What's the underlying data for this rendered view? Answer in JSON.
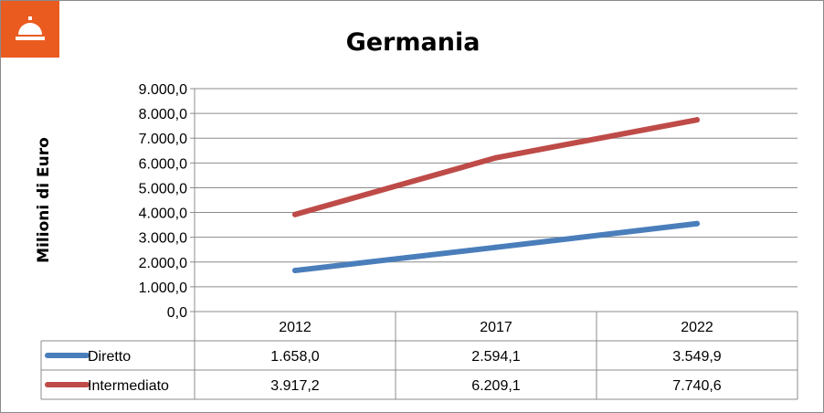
{
  "title": "Germania",
  "logo_icon": "service-bell-icon",
  "chart_data": {
    "type": "line",
    "title": "Germania",
    "xlabel": "",
    "ylabel": "Milioni di Euro",
    "categories": [
      "2012",
      "2017",
      "2022"
    ],
    "ylim": [
      0,
      9000
    ],
    "y_ticks": [
      "0,0",
      "1.000,0",
      "2.000,0",
      "3.000,0",
      "4.000,0",
      "5.000,0",
      "6.000,0",
      "7.000,0",
      "8.000,0",
      "9.000,0"
    ],
    "grid": true,
    "legend": "data-table",
    "series": [
      {
        "name": "Diretto",
        "values": [
          1658.0,
          2594.1,
          3549.9
        ],
        "labels": [
          "1.658,0",
          "2.594,1",
          "3.549,9"
        ],
        "color": "#4a7ebb"
      },
      {
        "name": "Intermediato",
        "values": [
          3917.2,
          6209.1,
          7740.6
        ],
        "labels": [
          "3.917,2",
          "6.209,1",
          "7.740,6"
        ],
        "color": "#be4b48"
      }
    ]
  }
}
